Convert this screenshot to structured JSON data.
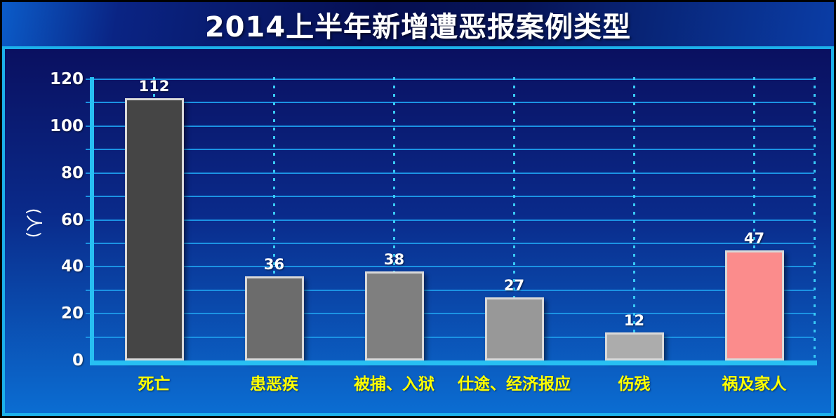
{
  "title": "2014上半年新增遭恶报案例类型",
  "chart_data": {
    "type": "bar",
    "title": "2014上半年新增遭恶报案例类型",
    "xlabel": "",
    "ylabel": "(人)",
    "categories": [
      "死亡",
      "患恶疾",
      "被捕、入狱",
      "仕途、经济报应",
      "伤残",
      "祸及家人"
    ],
    "values": [
      112,
      36,
      38,
      27,
      12,
      47
    ],
    "value_labels": [
      "112",
      "36",
      "38",
      "27",
      "12",
      "47"
    ],
    "bar_colors": [
      "#454545",
      "#6c6c6c",
      "#7f7f7f",
      "#989898",
      "#acacac",
      "#fb8c8c"
    ],
    "y_ticks": [
      0,
      20,
      40,
      60,
      80,
      100,
      120
    ],
    "ylim": [
      0,
      120
    ],
    "minor_grid_interval": 10,
    "grid": "horizontal solid every 10, vertical dotted guide at each category center",
    "legend": "none"
  },
  "colors": {
    "title_text": "#ffffff",
    "axis_cyan": "#27bff2",
    "gridline_blue": "#1b93e4",
    "dotted_guide": "#38c9f6",
    "category_label_yellow": "#ffff00",
    "value_label_white": "#ffffff",
    "bar_border": "#d9d9d9",
    "body_gradient_top": "#0a1060",
    "body_gradient_bottom": "#0b6dd2",
    "frame_black": "#000000",
    "frame_cyan": "#1cb0ea"
  }
}
